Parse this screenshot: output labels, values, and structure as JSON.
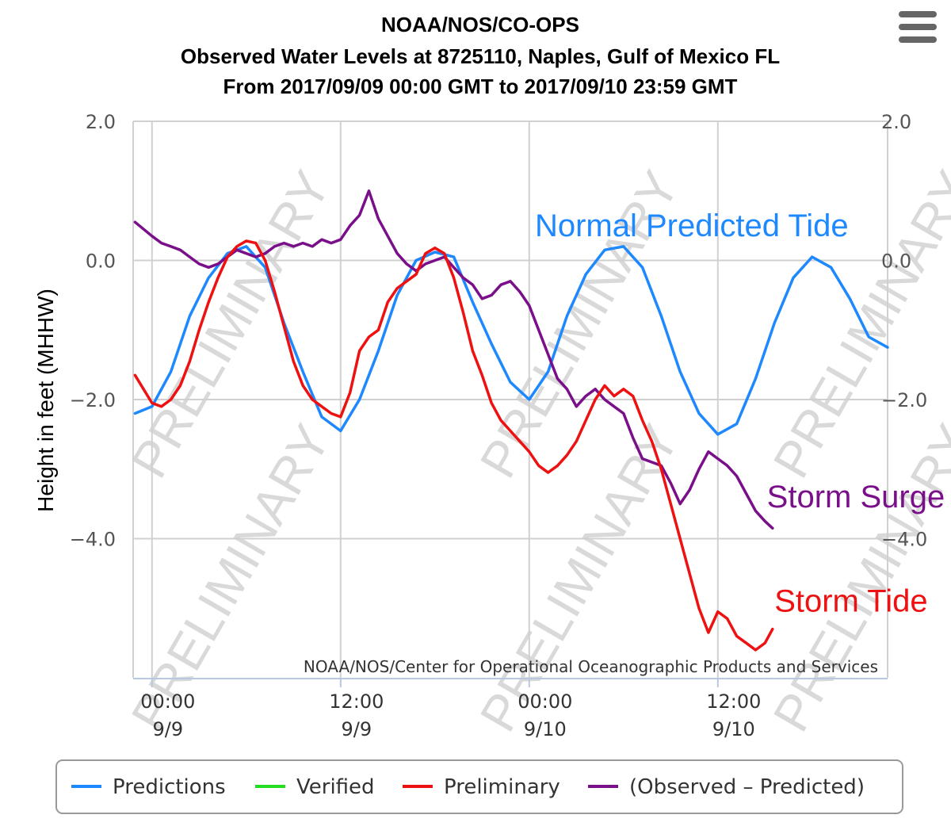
{
  "menu_icon": "hamburger-menu-icon",
  "chart_data": {
    "type": "line",
    "title": "NOAA/NOS/CO-OPS",
    "subtitle_line1": "Observed Water Levels at 8725110, Naples, Gulf of Mexico FL",
    "subtitle_line2": "From 2017/09/09 00:00 GMT to 2017/09/10 23:59 GMT",
    "ylabel": "Height in feet (MHHW)",
    "ylim": [
      -6,
      2
    ],
    "yticks": [
      {
        "value": 2,
        "label": "2.0"
      },
      {
        "value": 0,
        "label": "0.0"
      },
      {
        "value": -2,
        "label": "−2.0"
      },
      {
        "value": -4,
        "label": "−4.0"
      }
    ],
    "xlim": [
      -1,
      39
    ],
    "x_unit": "hours since 2017/09/09 00:00 GMT",
    "xticks": [
      {
        "value": 0,
        "time": "00:00",
        "date": "9/9"
      },
      {
        "value": 10,
        "time": "12:00",
        "date": "9/9"
      },
      {
        "value": 20,
        "time": "00:00",
        "date": "9/10"
      },
      {
        "value": 30,
        "time": "12:00",
        "date": "9/10"
      }
    ],
    "grid": true,
    "watermark": "PRELIMINARY",
    "credit": "NOAA/NOS/Center for Operational Oceanographic Products and Services",
    "series": [
      {
        "name": "Predictions",
        "color": "#1e88ff",
        "x": [
          -0.9,
          0,
          1,
          2,
          3,
          4,
          5,
          6,
          7,
          8,
          9,
          10,
          11,
          12,
          13,
          14,
          15,
          16,
          17,
          18,
          19,
          20,
          21,
          22,
          23,
          24,
          25,
          26,
          27,
          28,
          29,
          30,
          31,
          32,
          33,
          34,
          35,
          36,
          37,
          38,
          39
        ],
        "y": [
          -2.2,
          -2.1,
          -1.6,
          -0.8,
          -0.25,
          0.1,
          0.2,
          -0.1,
          -0.9,
          -1.6,
          -2.25,
          -2.45,
          -2.0,
          -1.3,
          -0.5,
          0.0,
          0.12,
          0.05,
          -0.6,
          -1.2,
          -1.75,
          -2.0,
          -1.6,
          -0.8,
          -0.2,
          0.15,
          0.2,
          -0.1,
          -0.8,
          -1.6,
          -2.2,
          -2.5,
          -2.35,
          -1.7,
          -0.9,
          -0.25,
          0.05,
          -0.1,
          -0.55,
          -1.1,
          -1.25
        ]
      },
      {
        "name": "Verified",
        "color": "#22dd22",
        "x": [],
        "y": []
      },
      {
        "name": "Preliminary",
        "color": "#ee1111",
        "x": [
          -0.9,
          0,
          0.5,
          1,
          1.5,
          2,
          2.5,
          3,
          3.5,
          4,
          4.5,
          5,
          5.5,
          6,
          6.5,
          7,
          7.5,
          8,
          8.5,
          9,
          9.5,
          10,
          10.5,
          11,
          11.5,
          12,
          12.5,
          13,
          13.5,
          14,
          14.5,
          15,
          15.5,
          16,
          16.5,
          17,
          17.5,
          18,
          18.5,
          19,
          19.5,
          20,
          20.5,
          21,
          21.5,
          22,
          22.5,
          23,
          23.5,
          24,
          24.5,
          25,
          25.5,
          26,
          26.5,
          27,
          27.5,
          28,
          28.5,
          29,
          29.5,
          30,
          30.5,
          31,
          31.5,
          32,
          32.5,
          32.9
        ],
        "y": [
          -1.65,
          -2.05,
          -2.1,
          -2.0,
          -1.8,
          -1.45,
          -1.0,
          -0.6,
          -0.25,
          0.05,
          0.2,
          0.28,
          0.25,
          0.0,
          -0.45,
          -0.95,
          -1.45,
          -1.8,
          -2.0,
          -2.1,
          -2.2,
          -2.25,
          -1.9,
          -1.3,
          -1.1,
          -1.0,
          -0.6,
          -0.4,
          -0.3,
          -0.2,
          0.1,
          0.18,
          0.1,
          -0.25,
          -0.75,
          -1.3,
          -1.65,
          -2.05,
          -2.3,
          -2.45,
          -2.6,
          -2.75,
          -2.95,
          -3.05,
          -2.95,
          -2.8,
          -2.6,
          -2.3,
          -2.0,
          -1.8,
          -1.95,
          -1.85,
          -1.95,
          -2.3,
          -2.6,
          -3.0,
          -3.5,
          -4.0,
          -4.5,
          -5.0,
          -5.35,
          -5.05,
          -5.15,
          -5.4,
          -5.5,
          -5.6,
          -5.5,
          -5.3
        ]
      },
      {
        "name": "(Observed - Predicted)",
        "color": "#7a0f8a",
        "x": [
          -0.9,
          0,
          0.5,
          1,
          1.5,
          2,
          2.5,
          3,
          3.5,
          4,
          4.5,
          5,
          5.5,
          6,
          6.5,
          7,
          7.5,
          8,
          8.5,
          9,
          9.5,
          10,
          10.5,
          11,
          11.5,
          12,
          12.5,
          13,
          13.5,
          14,
          14.5,
          15,
          15.5,
          16,
          16.5,
          17,
          17.5,
          18,
          18.5,
          19,
          19.5,
          20,
          20.5,
          21,
          21.5,
          22,
          22.5,
          23,
          23.5,
          24,
          24.5,
          25,
          25.5,
          26,
          26.5,
          27,
          27.5,
          28,
          28.5,
          29,
          29.5,
          30,
          30.5,
          31,
          31.5,
          32,
          32.5,
          32.9
        ],
        "y": [
          0.55,
          0.35,
          0.25,
          0.2,
          0.15,
          0.05,
          -0.05,
          -0.1,
          -0.05,
          0.05,
          0.15,
          0.1,
          0.05,
          0.1,
          0.2,
          0.25,
          0.2,
          0.25,
          0.2,
          0.3,
          0.25,
          0.3,
          0.5,
          0.65,
          1.0,
          0.6,
          0.35,
          0.1,
          -0.05,
          -0.15,
          -0.05,
          0.0,
          0.05,
          -0.1,
          -0.25,
          -0.35,
          -0.55,
          -0.5,
          -0.35,
          -0.3,
          -0.45,
          -0.65,
          -1.0,
          -1.35,
          -1.7,
          -1.85,
          -2.1,
          -1.95,
          -1.85,
          -2.0,
          -2.1,
          -2.2,
          -2.55,
          -2.85,
          -2.9,
          -2.95,
          -3.2,
          -3.5,
          -3.3,
          -3.0,
          -2.75,
          -2.85,
          -2.95,
          -3.1,
          -3.35,
          -3.6,
          -3.75,
          -3.85
        ]
      }
    ],
    "annotations": [
      {
        "text": "Normal Predicted Tide",
        "color": "#1e88ff",
        "x": 20.3,
        "y": 0.35
      },
      {
        "text": "Storm Surge",
        "color": "#7a0f8a",
        "x": 32.6,
        "y": -3.55
      },
      {
        "text": "Storm Tide",
        "color": "#ee1111",
        "x": 33.0,
        "y": -5.05
      }
    ],
    "legend": {
      "placement": "bottom",
      "items": [
        {
          "label": "Predictions",
          "color": "#1e88ff"
        },
        {
          "label": "Verified",
          "color": "#22dd22"
        },
        {
          "label": "Preliminary",
          "color": "#ee1111"
        },
        {
          "label": "(Observed – Predicted)",
          "color": "#7a0f8a"
        }
      ]
    }
  }
}
